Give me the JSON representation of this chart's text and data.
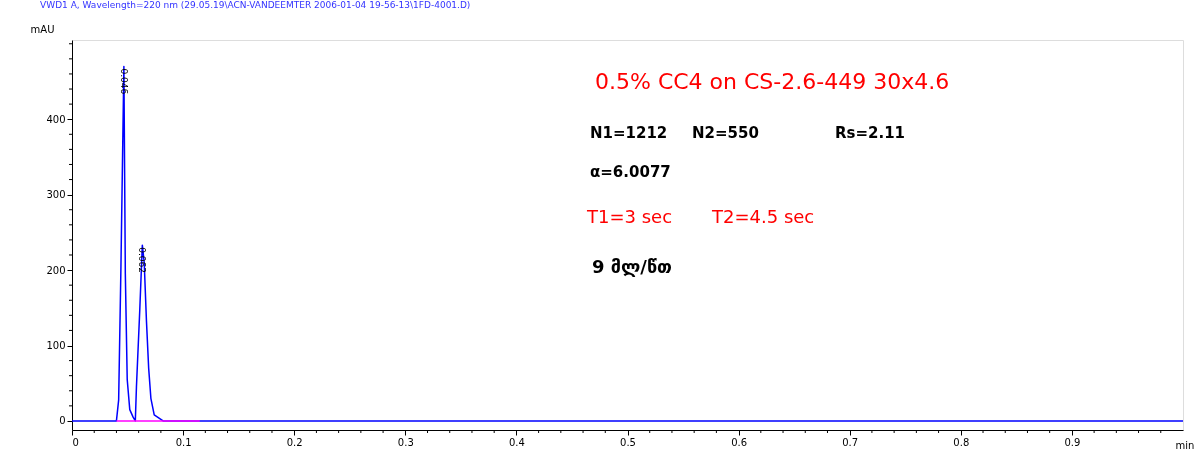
{
  "chart_data": {
    "type": "line",
    "title": "VWD1 A, Wavelength=220 nm (29.05.19\\ACN-VANDEEMTER 2006-01-04 19-56-13\\1FD-4001.D)",
    "xlabel": "min",
    "ylabel": "mAU",
    "series": [
      {
        "color": "#0000ff",
        "x": [
          0,
          0.04,
          0.042,
          0.044,
          0.0467,
          0.048,
          0.0497,
          0.052,
          0.055,
          0.057,
          0.058,
          0.061,
          0.0633,
          0.065,
          0.067,
          0.069,
          0.071,
          0.074,
          0.082,
          1.0
        ],
        "values": [
          0,
          0,
          28,
          200,
          470,
          195,
          55,
          15,
          5,
          0,
          45,
          147,
          233,
          210,
          133,
          70,
          30,
          8,
          0,
          0
        ]
      },
      {
        "color": "#ff00ff",
        "x": [
          0.04,
          0.115
        ],
        "values": [
          0,
          0
        ]
      }
    ],
    "annotations": [
      {
        "text": "0.046",
        "x": 0.0467,
        "y": 470
      },
      {
        "text": "0.062",
        "x": 0.0633,
        "y": 233
      },
      "0.5% CC4 on CS-2.6-449   30x4.6",
      "N1=1212",
      "N2=550",
      "Rs=2.11",
      "α=6.0077",
      "T1=3 sec",
      "T2=4.5 sec",
      "9 მლ/წთ"
    ],
    "xlim": [
      0,
      1.0
    ],
    "xticks": [
      0,
      {
        "value": 0.02,
        "label": null
      },
      {
        "value": 0.04,
        "label": null
      },
      {
        "value": 0.06,
        "label": null
      },
      {
        "value": 0.08,
        "label": null
      },
      0.1,
      {
        "value": 0.12,
        "label": null
      },
      {
        "value": 0.14,
        "label": null
      },
      {
        "value": 0.16,
        "label": null
      },
      {
        "value": 0.18,
        "label": null
      },
      0.2,
      {
        "value": 0.22,
        "label": null
      },
      {
        "value": 0.24,
        "label": null
      },
      {
        "value": 0.26,
        "label": null
      },
      {
        "value": 0.28,
        "label": null
      },
      0.3,
      {
        "value": 0.32,
        "label": null
      },
      {
        "value": 0.34,
        "label": null
      },
      {
        "value": 0.36,
        "label": null
      },
      {
        "value": 0.38,
        "label": null
      },
      0.4,
      {
        "value": 0.42,
        "label": null
      },
      {
        "value": 0.44,
        "label": null
      },
      {
        "value": 0.46,
        "label": null
      },
      {
        "value": 0.48,
        "label": null
      },
      0.5,
      {
        "value": 0.52,
        "label": null
      },
      {
        "value": 0.54,
        "label": null
      },
      {
        "value": 0.56,
        "label": null
      },
      {
        "value": 0.58,
        "label": null
      },
      0.6,
      {
        "value": 0.62,
        "label": null
      },
      {
        "value": 0.64,
        "label": null
      },
      {
        "value": 0.66,
        "label": null
      },
      {
        "value": 0.68,
        "label": null
      },
      0.7,
      {
        "value": 0.72,
        "label": null
      },
      {
        "value": 0.74,
        "label": null
      },
      {
        "value": 0.76,
        "label": null
      },
      {
        "value": 0.78,
        "label": null
      },
      0.8,
      {
        "value": 0.82,
        "label": null
      },
      {
        "value": 0.84,
        "label": null
      },
      {
        "value": 0.86,
        "label": null
      },
      {
        "value": 0.88,
        "label": null
      },
      0.9,
      {
        "value": 0.92,
        "label": null
      },
      {
        "value": 0.94,
        "label": null
      },
      {
        "value": 0.96,
        "label": null
      },
      {
        "value": 0.98,
        "label": null
      }
    ],
    "ylim": [
      -12,
      505
    ],
    "yticks": [
      0,
      {
        "value": 20,
        "label": null
      },
      {
        "value": 40,
        "label": null
      },
      {
        "value": 60,
        "label": null
      },
      {
        "value": 80,
        "label": null
      },
      100,
      {
        "value": 120,
        "label": null
      },
      {
        "value": 140,
        "label": null
      },
      {
        "value": 160,
        "label": null
      },
      {
        "value": 180,
        "label": null
      },
      200,
      {
        "value": 220,
        "label": null
      },
      {
        "value": 240,
        "label": null
      },
      {
        "value": 260,
        "label": null
      },
      {
        "value": 280,
        "label": null
      },
      300,
      {
        "value": 320,
        "label": null
      },
      {
        "value": 340,
        "label": null
      },
      {
        "value": 360,
        "label": null
      },
      {
        "value": 380,
        "label": null
      },
      400,
      {
        "value": 420,
        "label": null
      },
      {
        "value": 440,
        "label": null
      },
      {
        "value": 460,
        "label": null
      },
      {
        "value": 480,
        "label": null
      },
      {
        "value": 500,
        "label": null
      }
    ],
    "grid": false,
    "marker": "none",
    "line_style": "solid"
  }
}
